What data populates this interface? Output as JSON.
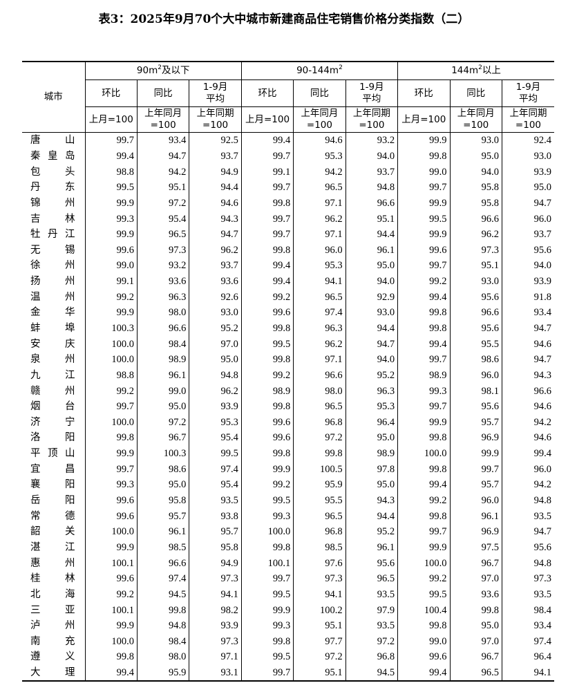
{
  "title": "表3：2025年9月70个大中城市新建商品住宅销售价格分类指数（二）",
  "header": {
    "city": "城市",
    "groups": [
      {
        "pre": "90m",
        "sup": "2",
        "post": "及以下"
      },
      {
        "pre": "90-144m",
        "sup": "2",
        "post": ""
      },
      {
        "pre": "144m",
        "sup": "2",
        "post": "以上"
      }
    ],
    "sub": [
      "环比",
      "同比",
      "1-9月\n平均"
    ],
    "base": [
      "上月=100",
      "上年同月\n=100",
      "上年同期\n=100"
    ]
  },
  "rows": [
    {
      "city": "唐山",
      "v": [
        "99.7",
        "93.4",
        "92.5",
        "99.4",
        "94.6",
        "93.2",
        "99.9",
        "93.0",
        "92.4"
      ]
    },
    {
      "city": "秦皇岛",
      "v": [
        "99.4",
        "94.7",
        "93.7",
        "99.7",
        "95.3",
        "94.0",
        "99.8",
        "95.0",
        "93.0"
      ]
    },
    {
      "city": "包头",
      "v": [
        "98.8",
        "94.2",
        "94.9",
        "99.1",
        "94.2",
        "93.7",
        "99.0",
        "94.0",
        "93.9"
      ]
    },
    {
      "city": "丹东",
      "v": [
        "99.5",
        "95.1",
        "94.4",
        "99.7",
        "96.5",
        "94.8",
        "99.7",
        "95.8",
        "95.0"
      ]
    },
    {
      "city": "锦州",
      "v": [
        "99.9",
        "97.2",
        "94.6",
        "99.8",
        "97.1",
        "96.6",
        "99.9",
        "95.8",
        "94.7"
      ]
    },
    {
      "city": "吉林",
      "v": [
        "99.3",
        "95.4",
        "94.3",
        "99.7",
        "96.2",
        "95.1",
        "99.5",
        "96.6",
        "96.0"
      ]
    },
    {
      "city": "牡丹江",
      "v": [
        "99.9",
        "96.5",
        "94.7",
        "99.7",
        "97.1",
        "94.4",
        "99.9",
        "96.2",
        "93.7"
      ]
    },
    {
      "city": "无锡",
      "v": [
        "99.6",
        "97.3",
        "96.2",
        "99.8",
        "96.0",
        "96.1",
        "99.6",
        "97.3",
        "95.6"
      ]
    },
    {
      "city": "徐州",
      "v": [
        "99.0",
        "93.2",
        "93.7",
        "99.4",
        "95.3",
        "95.0",
        "99.7",
        "95.1",
        "94.0"
      ]
    },
    {
      "city": "扬州",
      "v": [
        "99.1",
        "93.6",
        "93.6",
        "99.4",
        "94.1",
        "94.0",
        "99.2",
        "93.0",
        "93.9"
      ]
    },
    {
      "city": "温州",
      "v": [
        "99.2",
        "96.3",
        "92.6",
        "99.2",
        "96.5",
        "92.9",
        "99.4",
        "95.6",
        "91.8"
      ]
    },
    {
      "city": "金华",
      "v": [
        "99.9",
        "98.0",
        "93.0",
        "99.6",
        "97.4",
        "93.0",
        "99.8",
        "96.6",
        "93.4"
      ]
    },
    {
      "city": "蚌埠",
      "v": [
        "100.3",
        "96.6",
        "95.2",
        "99.8",
        "96.3",
        "94.4",
        "99.8",
        "95.6",
        "94.7"
      ]
    },
    {
      "city": "安庆",
      "v": [
        "100.0",
        "98.4",
        "97.0",
        "99.5",
        "96.2",
        "94.7",
        "99.4",
        "95.5",
        "94.6"
      ]
    },
    {
      "city": "泉州",
      "v": [
        "100.0",
        "98.9",
        "95.0",
        "99.8",
        "97.1",
        "94.0",
        "99.7",
        "98.6",
        "94.7"
      ]
    },
    {
      "city": "九江",
      "v": [
        "98.8",
        "96.1",
        "94.8",
        "99.2",
        "96.6",
        "95.2",
        "98.9",
        "96.0",
        "94.3"
      ]
    },
    {
      "city": "赣州",
      "v": [
        "99.2",
        "99.0",
        "96.2",
        "98.9",
        "98.0",
        "96.3",
        "99.3",
        "98.1",
        "96.6"
      ]
    },
    {
      "city": "烟台",
      "v": [
        "99.7",
        "95.0",
        "93.9",
        "99.8",
        "96.5",
        "95.3",
        "99.7",
        "95.6",
        "94.6"
      ]
    },
    {
      "city": "济宁",
      "v": [
        "100.0",
        "97.2",
        "95.3",
        "99.6",
        "96.8",
        "96.4",
        "99.9",
        "95.7",
        "94.2"
      ]
    },
    {
      "city": "洛阳",
      "v": [
        "99.8",
        "96.7",
        "95.4",
        "99.6",
        "97.2",
        "95.0",
        "99.8",
        "96.9",
        "94.6"
      ]
    },
    {
      "city": "平顶山",
      "v": [
        "99.9",
        "100.3",
        "99.5",
        "99.8",
        "99.8",
        "98.9",
        "100.0",
        "99.9",
        "99.4"
      ]
    },
    {
      "city": "宜昌",
      "v": [
        "99.7",
        "98.6",
        "97.4",
        "99.9",
        "100.5",
        "97.8",
        "99.8",
        "99.7",
        "96.0"
      ]
    },
    {
      "city": "襄阳",
      "v": [
        "99.3",
        "95.0",
        "95.4",
        "99.2",
        "95.9",
        "95.0",
        "99.4",
        "95.7",
        "94.2"
      ]
    },
    {
      "city": "岳阳",
      "v": [
        "99.6",
        "95.8",
        "93.5",
        "99.5",
        "95.5",
        "94.3",
        "99.2",
        "96.0",
        "94.8"
      ]
    },
    {
      "city": "常德",
      "v": [
        "99.6",
        "95.7",
        "93.8",
        "99.3",
        "96.5",
        "94.4",
        "99.8",
        "96.1",
        "93.5"
      ]
    },
    {
      "city": "韶关",
      "v": [
        "100.0",
        "96.1",
        "95.7",
        "100.0",
        "96.8",
        "95.2",
        "99.7",
        "96.9",
        "94.7"
      ]
    },
    {
      "city": "湛江",
      "v": [
        "99.9",
        "98.5",
        "95.8",
        "99.8",
        "98.5",
        "96.1",
        "99.9",
        "97.5",
        "95.6"
      ]
    },
    {
      "city": "惠州",
      "v": [
        "100.1",
        "96.6",
        "94.9",
        "100.1",
        "97.6",
        "95.6",
        "100.0",
        "96.7",
        "94.8"
      ]
    },
    {
      "city": "桂林",
      "v": [
        "99.6",
        "97.4",
        "97.3",
        "99.7",
        "97.3",
        "96.5",
        "99.2",
        "97.0",
        "97.3"
      ]
    },
    {
      "city": "北海",
      "v": [
        "99.2",
        "94.5",
        "94.1",
        "99.5",
        "94.1",
        "93.5",
        "99.5",
        "93.6",
        "93.5"
      ]
    },
    {
      "city": "三亚",
      "v": [
        "100.1",
        "99.8",
        "98.2",
        "99.9",
        "100.2",
        "97.9",
        "100.4",
        "99.8",
        "98.4"
      ]
    },
    {
      "city": "泸州",
      "v": [
        "99.9",
        "94.8",
        "93.9",
        "99.3",
        "95.1",
        "93.5",
        "99.8",
        "95.0",
        "93.4"
      ]
    },
    {
      "city": "南充",
      "v": [
        "100.0",
        "98.4",
        "97.3",
        "99.8",
        "97.7",
        "97.2",
        "99.0",
        "97.0",
        "97.4"
      ]
    },
    {
      "city": "遵义",
      "v": [
        "99.8",
        "98.0",
        "97.1",
        "99.5",
        "97.2",
        "96.8",
        "99.6",
        "96.7",
        "96.4"
      ]
    },
    {
      "city": "大理",
      "v": [
        "99.4",
        "95.9",
        "93.1",
        "99.7",
        "95.1",
        "94.5",
        "99.4",
        "96.5",
        "94.1"
      ]
    }
  ]
}
